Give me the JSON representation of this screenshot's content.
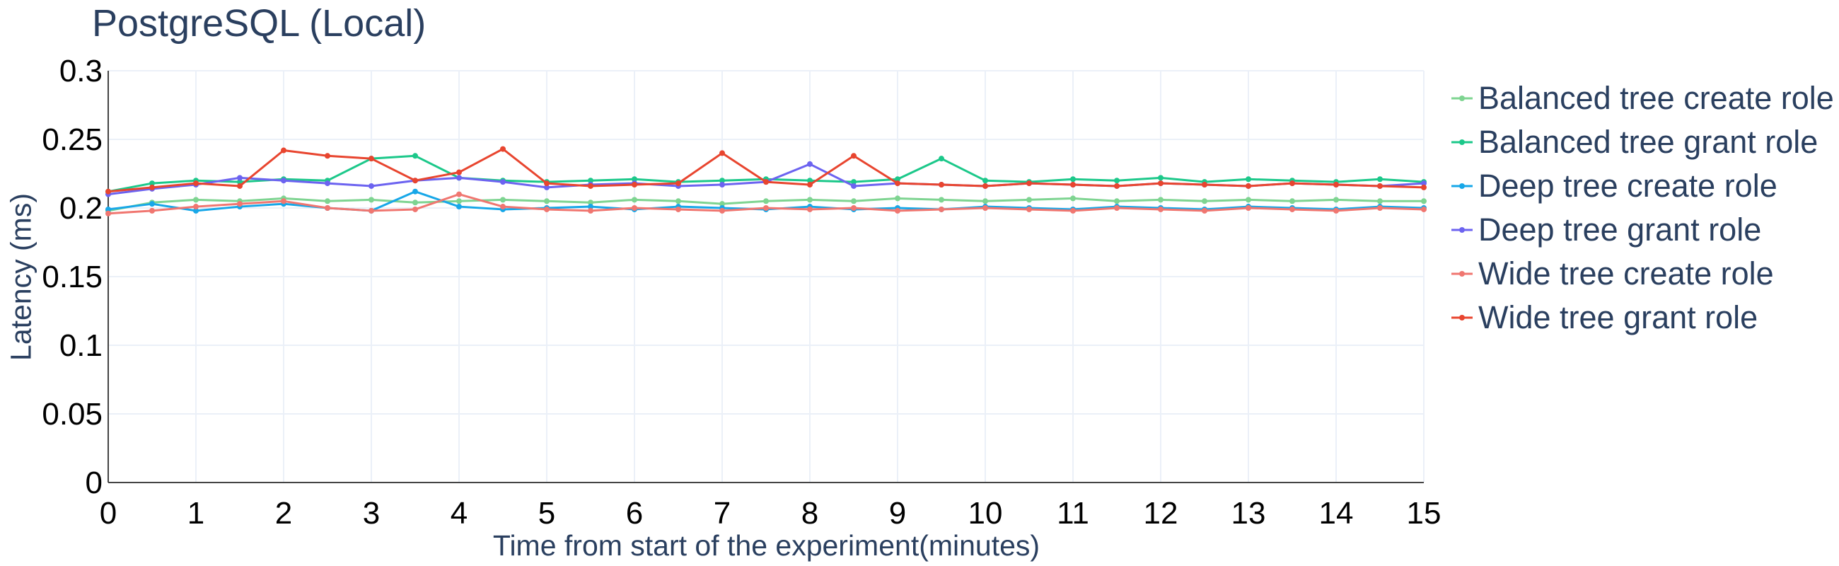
{
  "chart_data": {
    "type": "line",
    "title": "PostgreSQL (Local)",
    "xlabel": "Time from start of the experiment(minutes)",
    "ylabel": "Latency (ms)",
    "xlim": [
      0,
      15
    ],
    "ylim": [
      0,
      0.3
    ],
    "x_ticks": [
      "0",
      "1",
      "2",
      "3",
      "4",
      "5",
      "6",
      "7",
      "8",
      "9",
      "10",
      "11",
      "12",
      "13",
      "14",
      "15"
    ],
    "y_ticks": [
      "0",
      "0.05",
      "0.1",
      "0.15",
      "0.2",
      "0.25",
      "0.3"
    ],
    "grid": true,
    "legend_position": "right",
    "series": [
      {
        "name": "Balanced tree create role",
        "color": "#7ed491",
        "x": [
          0,
          0.5,
          1,
          1.5,
          2,
          2.5,
          3,
          3.5,
          4,
          4.5,
          5,
          5.5,
          6,
          6.5,
          7,
          7.5,
          8,
          8.5,
          9,
          9.5,
          10,
          10.5,
          11,
          11.5,
          12,
          12.5,
          13,
          13.5,
          14,
          14.5,
          15
        ],
        "y": [
          0.198,
          0.204,
          0.206,
          0.205,
          0.207,
          0.205,
          0.206,
          0.204,
          0.205,
          0.206,
          0.205,
          0.204,
          0.206,
          0.205,
          0.203,
          0.205,
          0.206,
          0.205,
          0.207,
          0.206,
          0.205,
          0.206,
          0.207,
          0.205,
          0.206,
          0.205,
          0.206,
          0.205,
          0.206,
          0.205,
          0.205
        ]
      },
      {
        "name": "Balanced tree grant role",
        "color": "#1cc88a",
        "x": [
          0,
          0.5,
          1,
          1.5,
          2,
          2.5,
          3,
          3.5,
          4,
          4.5,
          5,
          5.5,
          6,
          6.5,
          7,
          7.5,
          8,
          8.5,
          9,
          9.5,
          10,
          10.5,
          11,
          11.5,
          12,
          12.5,
          13,
          13.5,
          14,
          14.5,
          15
        ],
        "y": [
          0.212,
          0.218,
          0.22,
          0.219,
          0.221,
          0.22,
          0.236,
          0.238,
          0.222,
          0.22,
          0.219,
          0.22,
          0.221,
          0.219,
          0.22,
          0.221,
          0.22,
          0.219,
          0.221,
          0.236,
          0.22,
          0.219,
          0.221,
          0.22,
          0.222,
          0.219,
          0.221,
          0.22,
          0.219,
          0.221,
          0.219
        ]
      },
      {
        "name": "Deep tree create role",
        "color": "#17a7e8",
        "x": [
          0,
          0.5,
          1,
          1.5,
          2,
          2.5,
          3,
          3.5,
          4,
          4.5,
          5,
          5.5,
          6,
          6.5,
          7,
          7.5,
          8,
          8.5,
          9,
          9.5,
          10,
          10.5,
          11,
          11.5,
          12,
          12.5,
          13,
          13.5,
          14,
          14.5,
          15
        ],
        "y": [
          0.199,
          0.203,
          0.198,
          0.201,
          0.203,
          0.2,
          0.198,
          0.212,
          0.201,
          0.199,
          0.2,
          0.201,
          0.199,
          0.201,
          0.2,
          0.199,
          0.201,
          0.199,
          0.2,
          0.199,
          0.201,
          0.2,
          0.199,
          0.201,
          0.2,
          0.199,
          0.201,
          0.2,
          0.199,
          0.201,
          0.2
        ]
      },
      {
        "name": "Deep tree grant role",
        "color": "#6c63f0",
        "x": [
          0,
          0.5,
          1,
          1.5,
          2,
          2.5,
          3,
          3.5,
          4,
          4.5,
          5,
          5.5,
          6,
          6.5,
          7,
          7.5,
          8,
          8.5,
          9,
          9.5,
          10,
          10.5,
          11,
          11.5,
          12,
          12.5,
          13,
          13.5,
          14,
          14.5,
          15
        ],
        "y": [
          0.21,
          0.214,
          0.217,
          0.222,
          0.22,
          0.218,
          0.216,
          0.22,
          0.222,
          0.219,
          0.215,
          0.217,
          0.218,
          0.216,
          0.217,
          0.219,
          0.232,
          0.216,
          0.218,
          0.217,
          0.216,
          0.218,
          0.217,
          0.216,
          0.218,
          0.217,
          0.216,
          0.218,
          0.217,
          0.216,
          0.218
        ]
      },
      {
        "name": "Wide tree create role",
        "color": "#f07670",
        "x": [
          0,
          0.5,
          1,
          1.5,
          2,
          2.5,
          3,
          3.5,
          4,
          4.5,
          5,
          5.5,
          6,
          6.5,
          7,
          7.5,
          8,
          8.5,
          9,
          9.5,
          10,
          10.5,
          11,
          11.5,
          12,
          12.5,
          13,
          13.5,
          14,
          14.5,
          15
        ],
        "y": [
          0.196,
          0.198,
          0.201,
          0.203,
          0.205,
          0.2,
          0.198,
          0.199,
          0.21,
          0.201,
          0.199,
          0.198,
          0.2,
          0.199,
          0.198,
          0.2,
          0.199,
          0.2,
          0.198,
          0.199,
          0.2,
          0.199,
          0.198,
          0.2,
          0.199,
          0.198,
          0.2,
          0.199,
          0.198,
          0.2,
          0.199
        ]
      },
      {
        "name": "Wide tree grant role",
        "color": "#e8452f",
        "x": [
          0,
          0.5,
          1,
          1.5,
          2,
          2.5,
          3,
          3.5,
          4,
          4.5,
          5,
          5.5,
          6,
          6.5,
          7,
          7.5,
          8,
          8.5,
          9,
          9.5,
          10,
          10.5,
          11,
          11.5,
          12,
          12.5,
          13,
          13.5,
          14,
          14.5,
          15
        ],
        "y": [
          0.212,
          0.215,
          0.218,
          0.216,
          0.242,
          0.238,
          0.236,
          0.22,
          0.226,
          0.243,
          0.218,
          0.216,
          0.217,
          0.218,
          0.24,
          0.219,
          0.217,
          0.238,
          0.218,
          0.217,
          0.216,
          0.218,
          0.217,
          0.216,
          0.218,
          0.217,
          0.216,
          0.218,
          0.217,
          0.216,
          0.215
        ]
      }
    ]
  }
}
